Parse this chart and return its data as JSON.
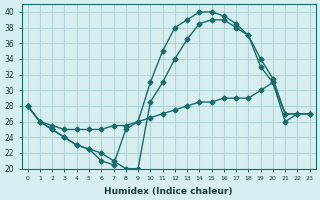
{
  "xlabel": "Humidex (Indice chaleur)",
  "ylabel": "",
  "bg_color": "#d6eef0",
  "grid_color": "#b0d4d8",
  "line_color": "#1a6b6b",
  "xlim_min": -0.5,
  "xlim_max": 23.5,
  "ylim_min": 20,
  "ylim_max": 41,
  "xticks": [
    0,
    1,
    2,
    3,
    4,
    5,
    6,
    7,
    8,
    9,
    10,
    11,
    12,
    13,
    14,
    15,
    16,
    17,
    18,
    19,
    20,
    21,
    22,
    23
  ],
  "yticks": [
    20,
    22,
    24,
    26,
    28,
    30,
    32,
    34,
    36,
    38,
    40
  ],
  "line1_x": [
    0,
    1,
    2,
    3,
    4,
    5,
    6,
    7,
    8,
    9,
    10,
    11,
    12,
    13,
    14,
    15,
    16,
    17,
    18,
    19,
    20,
    21,
    22,
    23
  ],
  "line1_y": [
    28,
    26,
    25,
    24,
    23,
    22.5,
    21,
    20.5,
    25,
    26,
    31,
    35,
    38,
    39,
    40,
    40,
    39.5,
    38.5,
    37,
    34,
    31.5,
    27,
    27,
    27
  ],
  "line2_x": [
    0,
    1,
    2,
    3,
    4,
    5,
    6,
    7,
    8,
    9,
    10,
    11,
    12,
    13,
    14,
    15,
    16,
    17,
    18,
    19,
    20,
    21,
    22,
    23
  ],
  "line2_y": [
    28,
    26,
    25,
    24,
    23,
    22.5,
    22,
    21,
    20,
    20,
    28.5,
    31,
    34,
    36.5,
    38.5,
    39,
    39,
    38,
    37,
    33,
    31,
    27,
    27,
    27
  ],
  "line3_x": [
    0,
    1,
    2,
    3,
    4,
    5,
    6,
    7,
    8,
    9,
    10,
    11,
    12,
    13,
    14,
    15,
    16,
    17,
    18,
    19,
    20,
    21,
    22,
    23
  ],
  "line3_y": [
    28,
    26,
    25.5,
    25,
    25,
    25,
    25,
    25.5,
    25.5,
    26,
    26.5,
    27,
    27.5,
    28,
    28.5,
    28.5,
    29,
    29,
    29,
    30,
    31,
    26,
    27,
    27
  ]
}
